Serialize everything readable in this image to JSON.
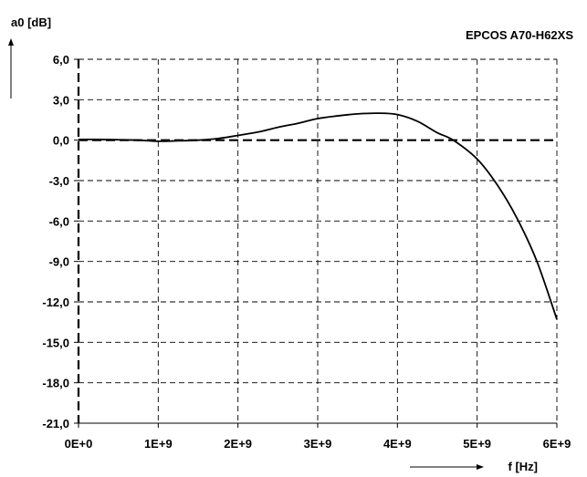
{
  "chart_data": {
    "type": "line",
    "title": "EPCOS A70-H62XS",
    "xlabel": "f [Hz]",
    "ylabel": "a0 [dB]",
    "xlim": [
      0,
      6000000000
    ],
    "ylim": [
      -21,
      6
    ],
    "x_ticks": [
      0,
      1000000000,
      2000000000,
      3000000000,
      4000000000,
      5000000000,
      6000000000
    ],
    "x_tick_labels": [
      "0E+0",
      "1E+9",
      "2E+9",
      "3E+9",
      "4E+9",
      "5E+9",
      "6E+9"
    ],
    "y_ticks": [
      6,
      3,
      0,
      -3,
      -6,
      -9,
      -12,
      -15,
      -18,
      -21
    ],
    "y_tick_labels": [
      "6,0",
      "3,0",
      "0,0",
      "-3,0",
      "-6,0",
      "-9,0",
      "-12,0",
      "-15,0",
      "-18,0",
      "-21,0"
    ],
    "grid": true,
    "series": [
      {
        "x": [
          0,
          250000000,
          500000000,
          750000000,
          1000000000,
          1250000000,
          1500000000,
          1750000000,
          2000000000,
          2250000000,
          2500000000,
          2750000000,
          3000000000,
          3250000000,
          3500000000,
          3750000000,
          4000000000,
          4250000000,
          4500000000,
          4700000000,
          5000000000,
          5250000000,
          5500000000,
          5750000000,
          6000000000
        ],
        "y": [
          0.05,
          0.05,
          0.03,
          0.0,
          -0.08,
          -0.05,
          0.0,
          0.12,
          0.35,
          0.6,
          0.95,
          1.25,
          1.6,
          1.8,
          1.95,
          2.0,
          1.9,
          1.4,
          0.55,
          0.0,
          -1.4,
          -3.3,
          -5.8,
          -9.0,
          -13.3
        ]
      }
    ]
  }
}
